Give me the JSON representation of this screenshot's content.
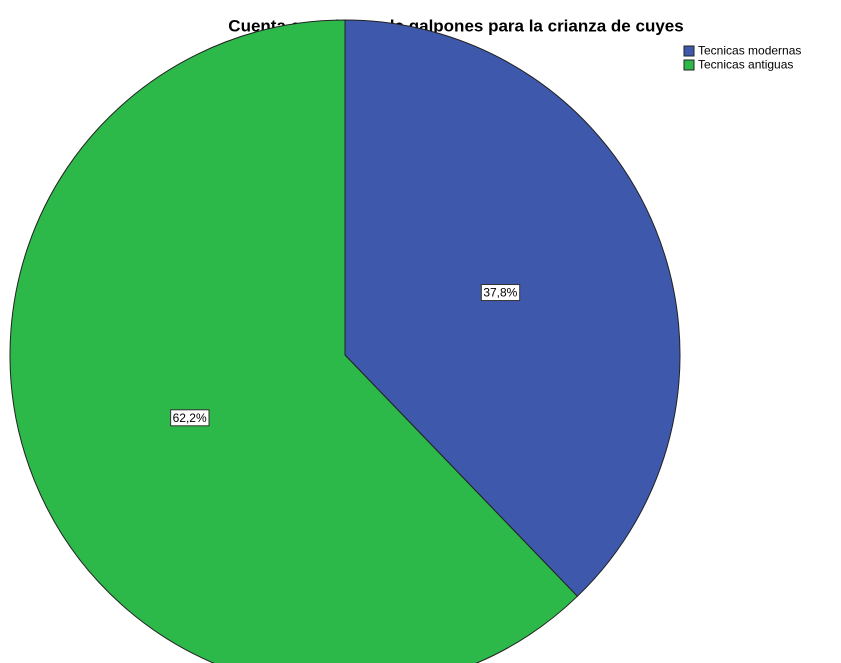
{
  "chart_data": {
    "type": "pie",
    "title": "Cuenta con sitema de galpones para la crianza de cuyes",
    "categories": [
      "Tecnicas modernas",
      "Tecnicas antiguas"
    ],
    "values": [
      37.8,
      62.2
    ],
    "value_labels": [
      "37,8%",
      "62,2%"
    ],
    "colors": [
      "#3e58ac",
      "#2db84a"
    ],
    "legend": "top-right"
  }
}
